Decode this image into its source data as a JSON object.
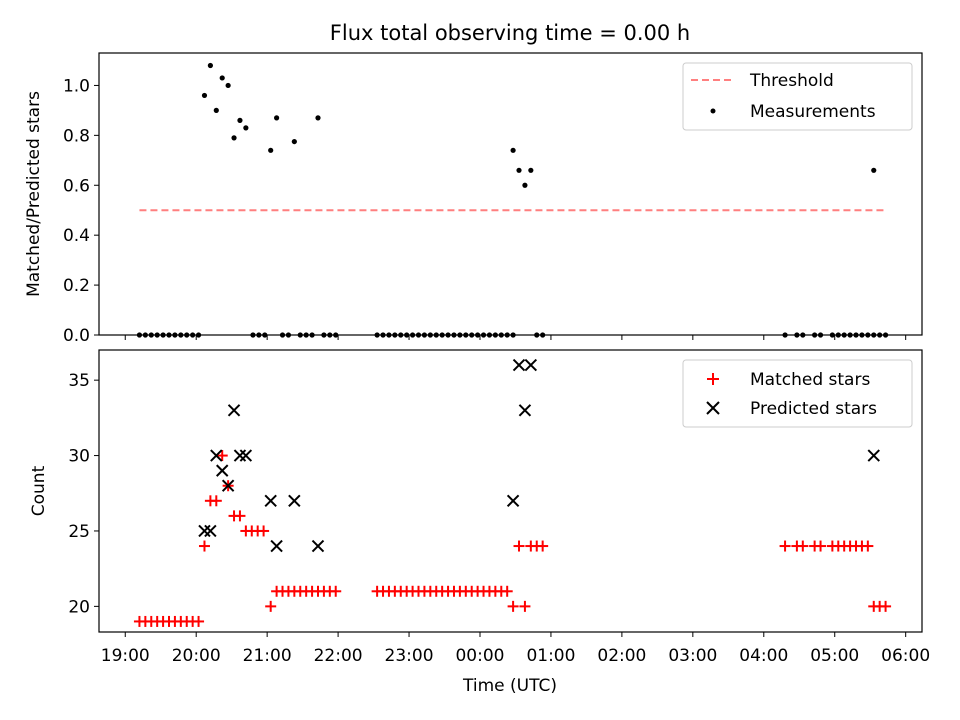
{
  "chart_data": [
    {
      "type": "scatter",
      "title": "Flux total observing time = 0.00 h",
      "xlabel": "",
      "ylabel": "Matched/Predicted stars",
      "xlim_hours": [
        18.63,
        30.23
      ],
      "ylim": [
        0,
        1.13
      ],
      "yticks": [
        0.0,
        0.2,
        0.4,
        0.6,
        0.8,
        1.0
      ],
      "ytick_labels": [
        "0.0",
        "0.2",
        "0.4",
        "0.6",
        "0.8",
        "1.0"
      ],
      "grid": false,
      "legend": {
        "placement": "top-right",
        "entries": [
          "Threshold",
          "Measurements"
        ]
      },
      "series": [
        {
          "name": "Threshold",
          "kind": "line",
          "color": "#ff7f7f",
          "x_start": "19:12",
          "x_end": "05:42",
          "value": 0.5
        },
        {
          "name": "Measurements",
          "kind": "scatter",
          "color": "#000000",
          "points": [
            [
              "19:12",
              0
            ],
            [
              "19:17",
              0
            ],
            [
              "19:22",
              0
            ],
            [
              "19:27",
              0
            ],
            [
              "19:32",
              0
            ],
            [
              "19:37",
              0
            ],
            [
              "19:42",
              0
            ],
            [
              "19:47",
              0
            ],
            [
              "19:52",
              0
            ],
            [
              "19:57",
              0
            ],
            [
              "20:02",
              0
            ],
            [
              "20:07",
              0.96
            ],
            [
              "20:12",
              1.08
            ],
            [
              "20:17",
              0.9
            ],
            [
              "20:22",
              1.03
            ],
            [
              "20:27",
              1.0
            ],
            [
              "20:32",
              0.79
            ],
            [
              "20:37",
              0.86
            ],
            [
              "20:42",
              0.83
            ],
            [
              "20:48",
              0
            ],
            [
              "20:53",
              0
            ],
            [
              "20:58",
              0
            ],
            [
              "21:03",
              0.74
            ],
            [
              "21:08",
              0.87
            ],
            [
              "21:13",
              0
            ],
            [
              "21:18",
              0
            ],
            [
              "21:23",
              0.775
            ],
            [
              "21:28",
              0
            ],
            [
              "21:33",
              0
            ],
            [
              "21:38",
              0
            ],
            [
              "21:43",
              0.87
            ],
            [
              "21:48",
              0
            ],
            [
              "21:53",
              0
            ],
            [
              "21:58",
              0
            ],
            [
              "22:33",
              0
            ],
            [
              "22:38",
              0
            ],
            [
              "22:43",
              0
            ],
            [
              "22:48",
              0
            ],
            [
              "22:53",
              0
            ],
            [
              "22:58",
              0
            ],
            [
              "23:03",
              0
            ],
            [
              "23:08",
              0
            ],
            [
              "23:13",
              0
            ],
            [
              "23:18",
              0
            ],
            [
              "23:23",
              0
            ],
            [
              "23:28",
              0
            ],
            [
              "23:33",
              0
            ],
            [
              "23:38",
              0
            ],
            [
              "23:43",
              0
            ],
            [
              "23:48",
              0
            ],
            [
              "23:53",
              0
            ],
            [
              "23:58",
              0
            ],
            [
              "00:03",
              0
            ],
            [
              "00:08",
              0
            ],
            [
              "00:13",
              0
            ],
            [
              "00:18",
              0
            ],
            [
              "00:23",
              0
            ],
            [
              "00:28",
              0
            ],
            [
              "00:28",
              0.74
            ],
            [
              "00:33",
              0.66
            ],
            [
              "00:38",
              0.6
            ],
            [
              "00:43",
              0.66
            ],
            [
              "00:48",
              0
            ],
            [
              "00:53",
              0
            ],
            [
              "04:18",
              0
            ],
            [
              "04:28",
              0
            ],
            [
              "04:33",
              0
            ],
            [
              "04:43",
              0
            ],
            [
              "04:48",
              0
            ],
            [
              "04:58",
              0
            ],
            [
              "05:03",
              0
            ],
            [
              "05:08",
              0
            ],
            [
              "05:13",
              0
            ],
            [
              "05:18",
              0
            ],
            [
              "05:23",
              0
            ],
            [
              "05:28",
              0
            ],
            [
              "05:33",
              0
            ],
            [
              "05:33",
              0.66
            ],
            [
              "05:38",
              0
            ],
            [
              "05:43",
              0
            ]
          ]
        }
      ]
    },
    {
      "type": "scatter",
      "title": "",
      "xlabel": "Time (UTC)",
      "ylabel": "Count",
      "xlim_hours": [
        18.63,
        30.23
      ],
      "ylim": [
        18.3,
        37
      ],
      "yticks": [
        20,
        25,
        30,
        35
      ],
      "ytick_labels": [
        "20",
        "25",
        "30",
        "35"
      ],
      "xticks": [
        "19:00",
        "20:00",
        "21:00",
        "22:00",
        "23:00",
        "00:00",
        "01:00",
        "02:00",
        "03:00",
        "04:00",
        "05:00",
        "06:00"
      ],
      "grid": false,
      "legend": {
        "placement": "top-right",
        "entries": [
          "Matched stars",
          "Predicted stars"
        ]
      },
      "series": [
        {
          "name": "Matched stars",
          "kind": "scatter",
          "marker": "+",
          "color": "#ff0000",
          "points": [
            [
              "19:12",
              19
            ],
            [
              "19:17",
              19
            ],
            [
              "19:22",
              19
            ],
            [
              "19:27",
              19
            ],
            [
              "19:32",
              19
            ],
            [
              "19:37",
              19
            ],
            [
              "19:42",
              19
            ],
            [
              "19:47",
              19
            ],
            [
              "19:52",
              19
            ],
            [
              "19:57",
              19
            ],
            [
              "20:02",
              19
            ],
            [
              "20:07",
              24
            ],
            [
              "20:12",
              27
            ],
            [
              "20:17",
              27
            ],
            [
              "20:22",
              30
            ],
            [
              "20:27",
              28
            ],
            [
              "20:32",
              26
            ],
            [
              "20:37",
              26
            ],
            [
              "20:42",
              25
            ],
            [
              "20:47",
              25
            ],
            [
              "20:52",
              25
            ],
            [
              "20:57",
              25
            ],
            [
              "21:03",
              20
            ],
            [
              "21:08",
              21
            ],
            [
              "21:13",
              21
            ],
            [
              "21:18",
              21
            ],
            [
              "21:23",
              21
            ],
            [
              "21:28",
              21
            ],
            [
              "21:33",
              21
            ],
            [
              "21:38",
              21
            ],
            [
              "21:43",
              21
            ],
            [
              "21:48",
              21
            ],
            [
              "21:53",
              21
            ],
            [
              "21:58",
              21
            ],
            [
              "22:33",
              21
            ],
            [
              "22:38",
              21
            ],
            [
              "22:43",
              21
            ],
            [
              "22:48",
              21
            ],
            [
              "22:53",
              21
            ],
            [
              "22:58",
              21
            ],
            [
              "23:03",
              21
            ],
            [
              "23:08",
              21
            ],
            [
              "23:13",
              21
            ],
            [
              "23:18",
              21
            ],
            [
              "23:23",
              21
            ],
            [
              "23:28",
              21
            ],
            [
              "23:33",
              21
            ],
            [
              "23:38",
              21
            ],
            [
              "23:43",
              21
            ],
            [
              "23:48",
              21
            ],
            [
              "23:53",
              21
            ],
            [
              "23:58",
              21
            ],
            [
              "00:03",
              21
            ],
            [
              "00:08",
              21
            ],
            [
              "00:13",
              21
            ],
            [
              "00:18",
              21
            ],
            [
              "00:23",
              21
            ],
            [
              "00:28",
              20
            ],
            [
              "00:33",
              24
            ],
            [
              "00:38",
              20
            ],
            [
              "00:43",
              24
            ],
            [
              "00:48",
              24
            ],
            [
              "00:53",
              24
            ],
            [
              "04:18",
              24
            ],
            [
              "04:28",
              24
            ],
            [
              "04:33",
              24
            ],
            [
              "04:43",
              24
            ],
            [
              "04:48",
              24
            ],
            [
              "04:58",
              24
            ],
            [
              "05:03",
              24
            ],
            [
              "05:08",
              24
            ],
            [
              "05:13",
              24
            ],
            [
              "05:18",
              24
            ],
            [
              "05:23",
              24
            ],
            [
              "05:28",
              24
            ],
            [
              "05:33",
              20
            ],
            [
              "05:38",
              20
            ],
            [
              "05:43",
              20
            ]
          ]
        },
        {
          "name": "Predicted stars",
          "kind": "scatter",
          "marker": "x",
          "color": "#000000",
          "points": [
            [
              "20:07",
              25
            ],
            [
              "20:12",
              25
            ],
            [
              "20:17",
              30
            ],
            [
              "20:22",
              29
            ],
            [
              "20:27",
              28
            ],
            [
              "20:32",
              33
            ],
            [
              "20:37",
              30
            ],
            [
              "20:42",
              30
            ],
            [
              "21:03",
              27
            ],
            [
              "21:08",
              24
            ],
            [
              "21:23",
              27
            ],
            [
              "21:43",
              24
            ],
            [
              "00:28",
              27
            ],
            [
              "00:33",
              36
            ],
            [
              "00:38",
              33
            ],
            [
              "00:43",
              36
            ],
            [
              "05:33",
              30
            ]
          ]
        }
      ]
    }
  ]
}
